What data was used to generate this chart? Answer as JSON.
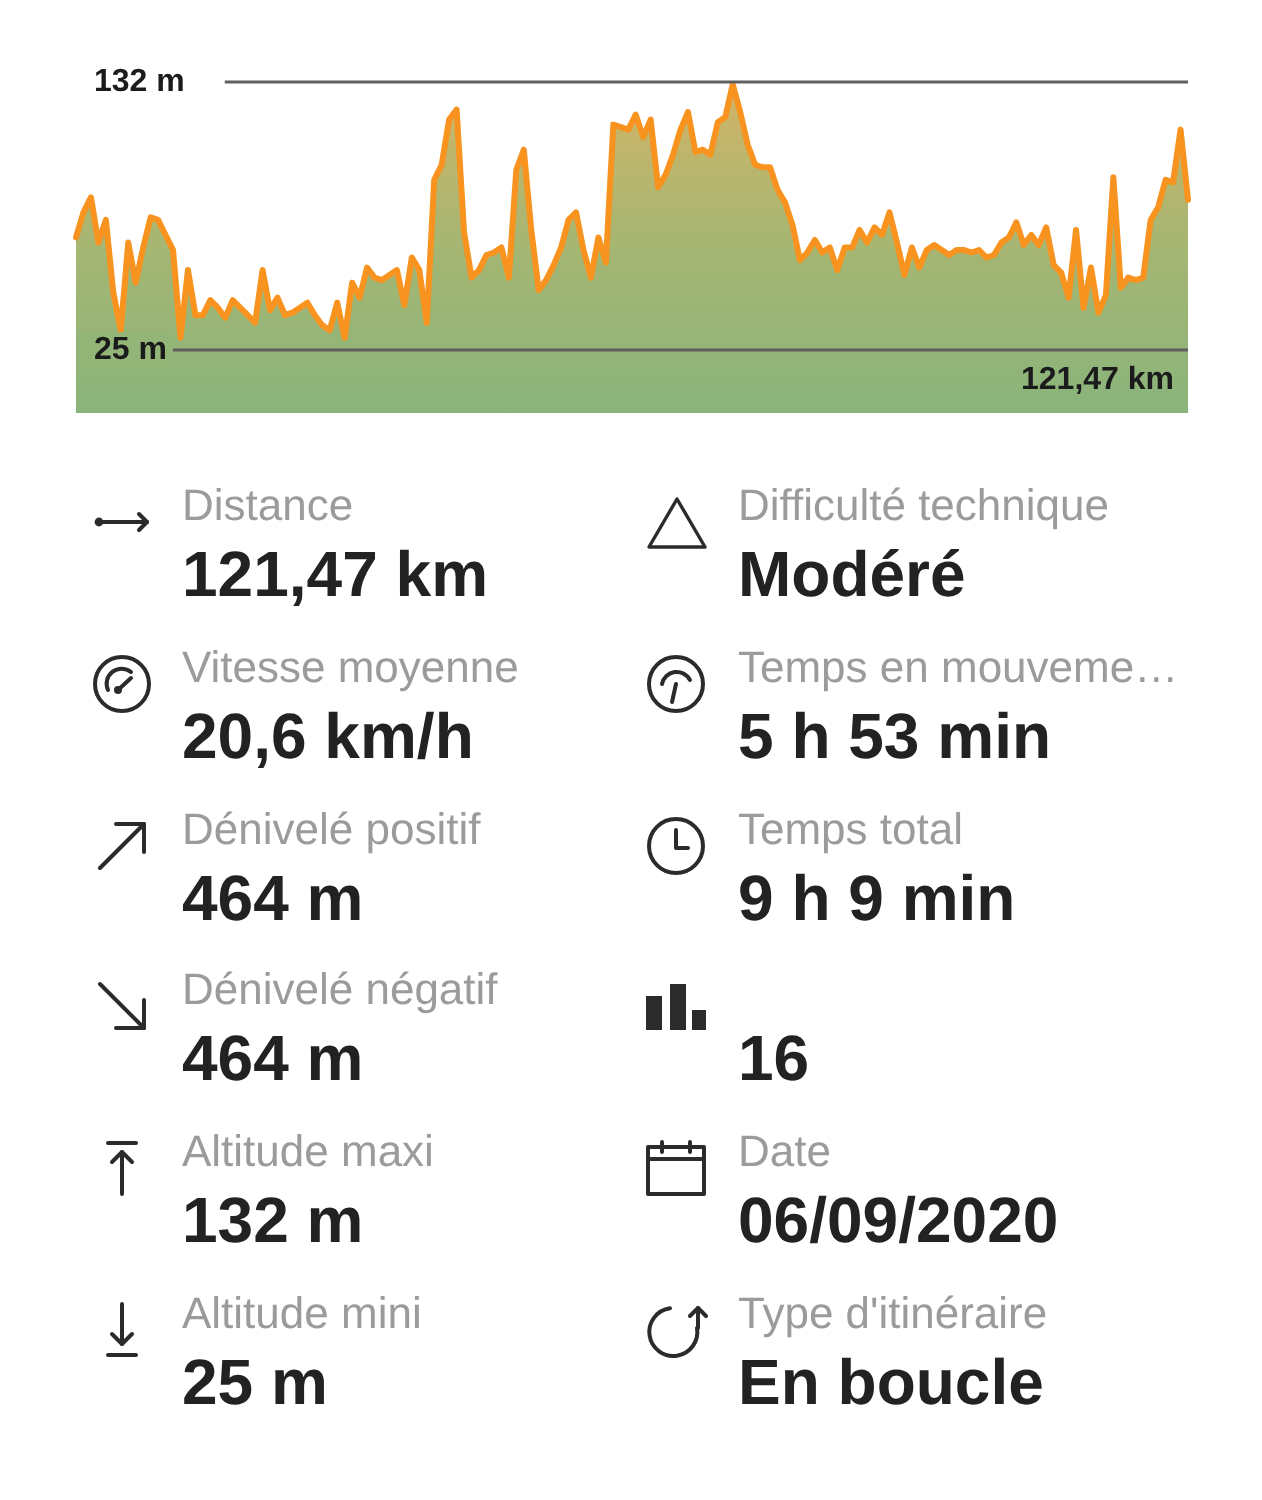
{
  "chart_data": [
    {
      "type": "area",
      "categories": [
        null,
        null,
        null,
        null,
        null,
        null,
        null,
        null,
        null,
        null,
        null,
        null,
        null,
        null,
        null,
        null,
        null,
        null,
        null,
        null,
        null,
        null,
        null,
        null,
        null,
        null,
        null,
        null,
        null,
        null,
        null,
        null,
        null,
        null,
        null,
        null,
        null,
        null,
        null,
        null,
        null,
        null,
        null,
        null,
        null,
        null,
        null,
        null,
        null,
        null,
        null,
        null,
        null,
        null,
        null,
        null,
        null,
        null,
        null,
        null,
        null,
        null,
        null,
        null,
        null,
        null,
        null,
        null,
        null,
        null,
        null,
        null,
        null,
        null,
        null,
        null,
        null,
        null,
        null,
        null,
        null,
        null,
        null,
        null,
        null,
        null,
        null,
        null,
        null,
        null,
        null,
        null,
        null,
        null,
        null,
        null,
        null,
        null,
        null,
        null,
        null,
        null,
        null,
        null,
        null,
        null,
        null,
        null,
        null,
        null,
        null,
        null,
        null,
        null,
        null,
        null,
        null,
        null,
        null,
        null,
        null,
        null,
        null,
        null,
        null,
        null,
        null,
        null,
        null,
        null,
        null,
        null,
        null,
        null,
        null,
        null,
        null,
        null,
        null,
        null,
        null,
        null,
        null,
        null,
        null,
        null,
        null,
        null,
        null,
        null
      ],
      "values": [
        70,
        80,
        86,
        68,
        77,
        48,
        33,
        68,
        52,
        66,
        78,
        77,
        71,
        65,
        30,
        57,
        39,
        39,
        45,
        42,
        38,
        45,
        42,
        39,
        36,
        57,
        41,
        46,
        39,
        40,
        42,
        44,
        39,
        35,
        33,
        44,
        30,
        52,
        46,
        58,
        54,
        53,
        55,
        57,
        43,
        62,
        57,
        36,
        93,
        99,
        117,
        121,
        72,
        54,
        57,
        63,
        64,
        66,
        54,
        97,
        105,
        73,
        49,
        53,
        59,
        66,
        77,
        80,
        65,
        54,
        70,
        60,
        115,
        114,
        113,
        119,
        110,
        117,
        90,
        95,
        103,
        113,
        120,
        104,
        105,
        103,
        116,
        118,
        131,
        120,
        107,
        99,
        98,
        98,
        89,
        84,
        75,
        61,
        64,
        69,
        64,
        66,
        57,
        66,
        66,
        73,
        68,
        74,
        71,
        80,
        68,
        55,
        66,
        58,
        65,
        67,
        65,
        63,
        65,
        65,
        64,
        65,
        62,
        63,
        68,
        70,
        76,
        67,
        71,
        67,
        74,
        59,
        56,
        46,
        73,
        42,
        58,
        40,
        47,
        94,
        50,
        54,
        53,
        54,
        77,
        82,
        93,
        92,
        113,
        85
      ],
      "color": "#f7931e",
      "ylim": [
        0,
        132
      ],
      "yticks": [
        {
          "value": 25,
          "label": "25 m"
        },
        {
          "value": 132,
          "label": "132 m"
        }
      ],
      "grid": "y",
      "annotations": [
        "121,47 km"
      ]
    },
    {
      "type": "other",
      "categories": [
        "Distance",
        "Difficulté technique",
        "Vitesse moyenne",
        "Temps en mouveme…",
        "Dénivelé positif",
        "Temps total",
        "Dénivelé négatif",
        null,
        "Altitude maxi",
        "Date",
        "Altitude mini",
        "Type d'itinéraire"
      ],
      "value_labels": [
        "121,47 km",
        "Modéré",
        "20,6 km/h",
        "5 h 53 min",
        "464 m",
        "9 h 9 min",
        "464 m",
        "16",
        "132 m",
        "06/09/2020",
        "25 m",
        "En boucle"
      ]
    }
  ]
}
